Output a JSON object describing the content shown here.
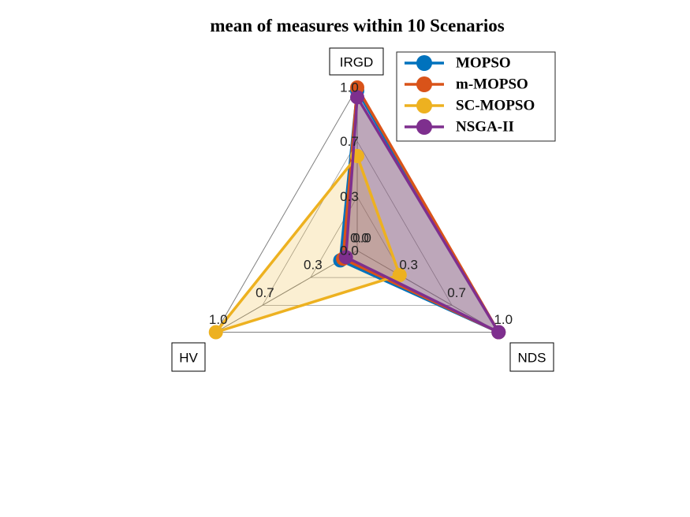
{
  "chart_data": {
    "type": "radar",
    "title": "mean of measures within 10 Scenarios",
    "axes": [
      "IRGD",
      "HV",
      "NDS"
    ],
    "tick_labels": [
      "0.0",
      "0.3",
      "0.7",
      "1.0"
    ],
    "tick_values": [
      0.0,
      0.33,
      0.67,
      1.0
    ],
    "range": [
      0,
      1
    ],
    "legend_position": "top-right",
    "series": [
      {
        "name": "MOPSO",
        "values": [
          0.98,
          0.12,
          1.0
        ],
        "color": "#0072BD"
      },
      {
        "name": "m-MOPSO",
        "values": [
          1.0,
          0.1,
          1.0
        ],
        "color": "#D95319"
      },
      {
        "name": "SC-MOPSO",
        "values": [
          0.58,
          1.0,
          0.3
        ],
        "color": "#EDB120"
      },
      {
        "name": "NSGA-II",
        "values": [
          0.94,
          0.08,
          1.0
        ],
        "color": "#7E2F8E"
      }
    ]
  }
}
